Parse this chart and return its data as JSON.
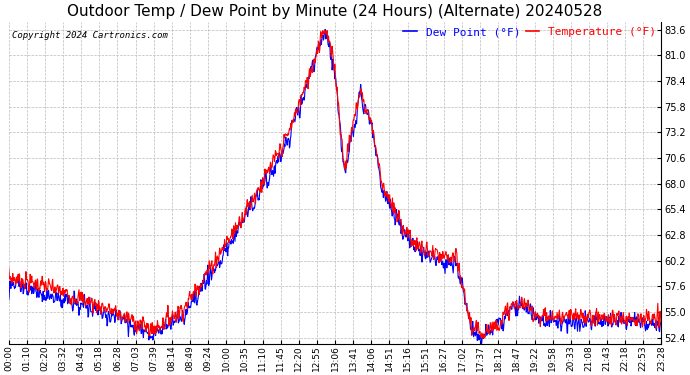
{
  "title": "Outdoor Temp / Dew Point by Minute (24 Hours) (Alternate) 20240528",
  "copyright": "Copyright 2024 Cartronics.com",
  "legend_dew": "Dew Point (°F)",
  "legend_temp": "Temperature (°F)",
  "dew_color": "#0000ff",
  "temp_color": "#ff0000",
  "bg_color": "#ffffff",
  "grid_color": "#bbbbbb",
  "yticks": [
    52.4,
    55.0,
    57.6,
    60.2,
    62.8,
    65.4,
    68.0,
    70.6,
    73.2,
    75.8,
    78.4,
    81.0,
    83.6
  ],
  "ylim": [
    51.8,
    84.4
  ],
  "title_fontsize": 11,
  "label_fontsize": 8,
  "tick_fontsize": 7,
  "line_width": 0.8,
  "xtick_labels": [
    "00:00",
    "01:10",
    "02:20",
    "03:32",
    "04:43",
    "05:18",
    "06:28",
    "07:03",
    "07:39",
    "08:14",
    "08:49",
    "09:24",
    "10:00",
    "10:35",
    "11:10",
    "11:45",
    "12:20",
    "12:55",
    "13:06",
    "13:41",
    "14:06",
    "14:51",
    "15:16",
    "15:51",
    "16:27",
    "17:02",
    "17:37",
    "18:12",
    "18:47",
    "19:22",
    "19:58",
    "20:33",
    "21:08",
    "21:43",
    "22:18",
    "22:53",
    "23:28"
  ]
}
